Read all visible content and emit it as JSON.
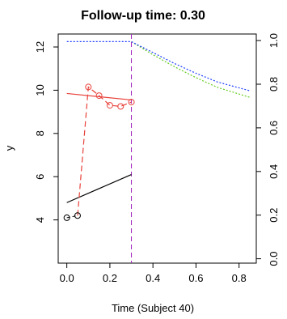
{
  "chart_data": {
    "type": "line",
    "title": "Follow-up time: 0.30",
    "xlabel": "Time (Subject 40)",
    "ylabel": "y",
    "xlim": [
      -0.04,
      0.88
    ],
    "ylim": [
      2.0,
      12.6
    ],
    "right_ylim": [
      -0.02,
      1.03
    ],
    "x_ticks": [
      "0.0",
      "0.2",
      "0.4",
      "0.6",
      "0.8"
    ],
    "x_tick_values": [
      0.0,
      0.2,
      0.4,
      0.6,
      0.8
    ],
    "y_ticks": [
      "4",
      "6",
      "8",
      "10",
      "12"
    ],
    "y_tick_values": [
      4,
      6,
      8,
      10,
      12
    ],
    "right_ticks": [
      "0.0",
      "0.2",
      "0.4",
      "0.6",
      "0.8",
      "1.0"
    ],
    "right_tick_values": [
      0.0,
      0.2,
      0.4,
      0.6,
      0.8,
      1.0
    ],
    "follow_up_time": 0.3,
    "series": [
      {
        "role": "observed-black",
        "color": "#000000",
        "points": [
          [
            0.0,
            4.1
          ],
          [
            0.05,
            4.2
          ]
        ]
      },
      {
        "role": "observed-red",
        "color": "#e8413a",
        "points": [
          [
            0.1,
            10.15
          ],
          [
            0.15,
            9.75
          ],
          [
            0.2,
            9.3
          ],
          [
            0.25,
            9.25
          ],
          [
            0.3,
            9.45
          ]
        ]
      },
      {
        "role": "fitted-black",
        "color": "#000000",
        "line": [
          [
            0.0,
            4.8
          ],
          [
            0.3,
            6.1
          ]
        ]
      },
      {
        "role": "fitted-red",
        "color": "#e8413a",
        "line": [
          [
            0.0,
            9.85
          ],
          [
            0.3,
            9.55
          ]
        ]
      },
      {
        "role": "survival-blue",
        "color": "#1f3fff",
        "axis": "right",
        "line": [
          [
            0.0,
            0.995
          ],
          [
            0.3,
            0.995
          ],
          [
            0.4,
            0.945
          ],
          [
            0.5,
            0.895
          ],
          [
            0.6,
            0.85
          ],
          [
            0.7,
            0.81
          ],
          [
            0.85,
            0.77
          ]
        ]
      },
      {
        "role": "survival-green",
        "color": "#66cc22",
        "axis": "right",
        "line": [
          [
            0.3,
            0.995
          ],
          [
            0.4,
            0.935
          ],
          [
            0.5,
            0.88
          ],
          [
            0.6,
            0.83
          ],
          [
            0.7,
            0.785
          ],
          [
            0.85,
            0.74
          ]
        ]
      }
    ]
  }
}
